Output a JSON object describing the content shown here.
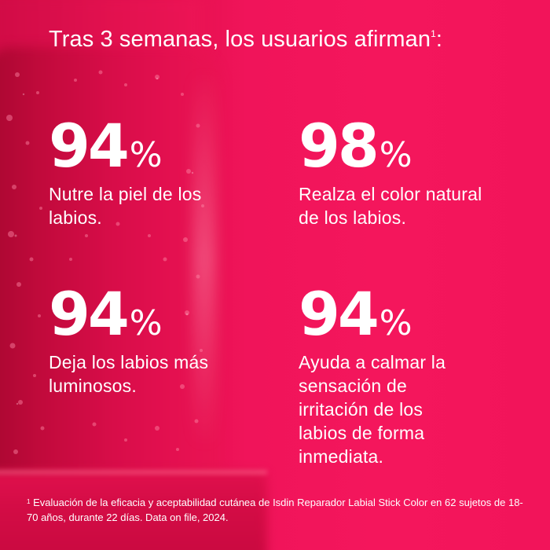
{
  "heading": {
    "text": "Tras 3 semanas, los usuarios afirman",
    "footnote_ref": "1",
    "suffix": ":"
  },
  "stats": [
    {
      "value": "94",
      "unit": "%",
      "description": "Nutre la piel de los labios."
    },
    {
      "value": "98",
      "unit": "%",
      "description": "Realza el color natural de los labios."
    },
    {
      "value": "94",
      "unit": "%",
      "description": "Deja los labios más luminosos."
    },
    {
      "value": "94",
      "unit": "%",
      "description": "Ayuda a calmar la sensación de irritación de los labios de forma inmediata."
    }
  ],
  "footnote": {
    "marker": "1",
    "text": "Evaluación de la eficacia y aceptabilidad cutánea de Isdin Reparador Labial Stick Color en 62 sujetos de 18-70 años, durante 22 días. Data on file, 2024."
  },
  "colors": {
    "background": "#f2145a",
    "text": "#ffffff",
    "product": "#c20a3c"
  }
}
